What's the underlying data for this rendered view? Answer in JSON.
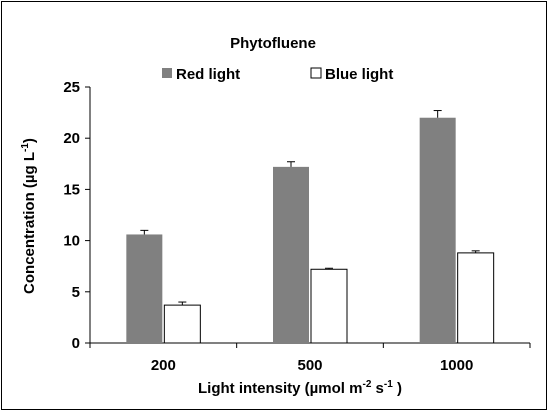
{
  "chart_data": {
    "type": "bar",
    "title": "Phytofluene",
    "categories": [
      "200",
      "500",
      "1000"
    ],
    "series": [
      {
        "name": "Red light",
        "values": [
          10.6,
          17.2,
          22.0
        ],
        "errors": [
          0.4,
          0.5,
          0.7
        ],
        "color": "#808080"
      },
      {
        "name": "Blue light",
        "values": [
          3.7,
          7.2,
          8.8
        ],
        "errors": [
          0.3,
          0.1,
          0.2
        ],
        "color": "#ffffff"
      }
    ],
    "ylim": [
      0,
      25
    ],
    "yticks": [
      "0",
      "5",
      "10",
      "15",
      "20",
      "25"
    ],
    "ylabel": {
      "main": "Concentration (µg L",
      "sup": "-1",
      "tail": ")"
    },
    "xlabel": {
      "p1": "Light intensity (µmol m",
      "sup1": "-2",
      "p2": " s",
      "sup2": "-1",
      "p3": " )"
    },
    "legend_position": "top-center",
    "grid": false
  }
}
